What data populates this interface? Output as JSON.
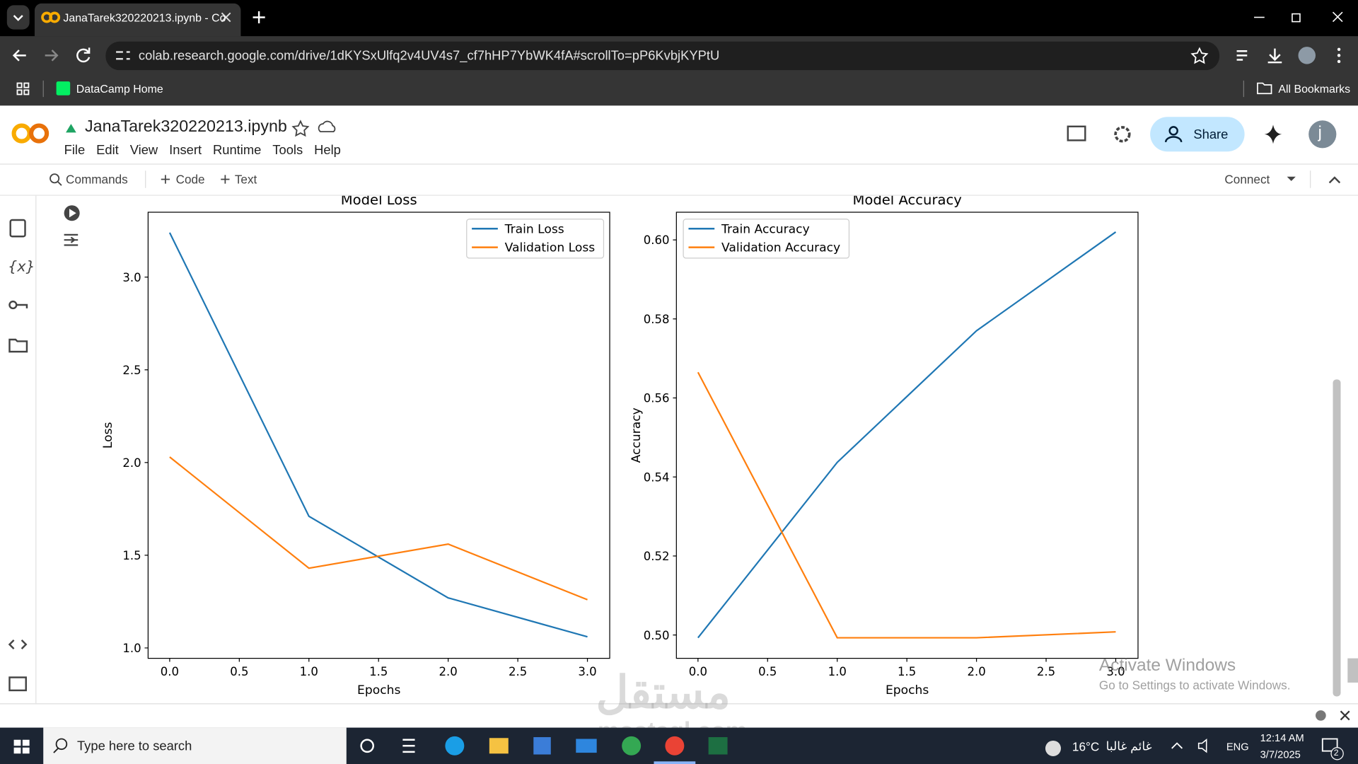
{
  "browser": {
    "tab_title": "JanaTarek320220213.ipynb - Co",
    "url": "colab.research.google.com/drive/1dKYSxUlfq2v4UV4s7_cf7hHP7YbWK4fA#scrollTo=pP6KvbjKYPtU",
    "bookmark": "DataCamp Home",
    "all_bookmarks": "All Bookmarks",
    "profile": "j"
  },
  "colab": {
    "filename": "JanaTarek320220213.ipynb",
    "menu": [
      "File",
      "Edit",
      "View",
      "Insert",
      "Runtime",
      "Tools",
      "Help"
    ],
    "share": "Share",
    "avatar": "j",
    "toolbar": {
      "commands": "Commands",
      "code": "Code",
      "text": "Text",
      "connect": "Connect"
    }
  },
  "chart_data": [
    {
      "type": "line",
      "title": "Model Loss",
      "x_label": "Epochs",
      "y_label": "Loss",
      "x": [
        0,
        1,
        2,
        3
      ],
      "series": [
        {
          "name": "Train Loss",
          "color": "#1f77b4",
          "values": [
            3.24,
            1.71,
            1.27,
            1.06
          ]
        },
        {
          "name": "Validation Loss",
          "color": "#ff7f0e",
          "values": [
            2.03,
            1.43,
            1.56,
            1.26
          ]
        }
      ],
      "xlim": [
        -0.155,
        3.16
      ],
      "xticks": [
        {
          "value": 0,
          "label": "0.0"
        },
        0.5,
        {
          "value": 1,
          "label": "1.0"
        },
        1.5,
        {
          "value": 2,
          "label": "2.0"
        },
        2.5,
        {
          "value": 3,
          "label": "3.0"
        }
      ],
      "ylim": [
        0.944,
        3.35
      ],
      "yticks": [
        {
          "value": 1,
          "label": "1.0"
        },
        1.5,
        {
          "value": 2,
          "label": "2.0"
        },
        2.5,
        {
          "value": 3,
          "label": "3.0"
        }
      ],
      "legend": "upper right",
      "grid": false
    },
    {
      "type": "line",
      "title": "Model Accuracy",
      "x_label": "Epochs",
      "y_label": "Accuracy",
      "x": [
        0,
        1,
        2,
        3
      ],
      "series": [
        {
          "name": "Train Accuracy",
          "color": "#1f77b4",
          "values": [
            0.4993,
            0.5437,
            0.577,
            0.602
          ]
        },
        {
          "name": "Validation Accuracy",
          "color": "#ff7f0e",
          "values": [
            0.5665,
            0.4993,
            0.4993,
            0.5008
          ]
        }
      ],
      "xlim": [
        -0.155,
        3.16
      ],
      "xticks": [
        {
          "value": 0,
          "label": "0.0"
        },
        0.5,
        {
          "value": 1,
          "label": "1.0"
        },
        1.5,
        {
          "value": 2,
          "label": "2.0"
        },
        2.5,
        {
          "value": 3,
          "label": "3.0"
        }
      ],
      "ylim": [
        0.4941,
        0.607
      ],
      "yticks": [
        {
          "value": 0.5,
          "label": "0.50"
        },
        0.52,
        0.54,
        0.56,
        0.58,
        {
          "value": 0.6,
          "label": "0.60"
        }
      ],
      "legend": "upper left",
      "grid": false
    }
  ],
  "watermark": {
    "title": "Activate Windows",
    "subtitle": "Go to Settings to activate Windows.",
    "site_ar": "مستقل",
    "site": "mostaql.com"
  },
  "taskbar": {
    "search": "Type here to search",
    "temperature": "16°C",
    "weather": "غائم غالبا",
    "language": "ENG",
    "time": "12:14 AM",
    "date": "3/7/2025",
    "notifications": "2"
  }
}
